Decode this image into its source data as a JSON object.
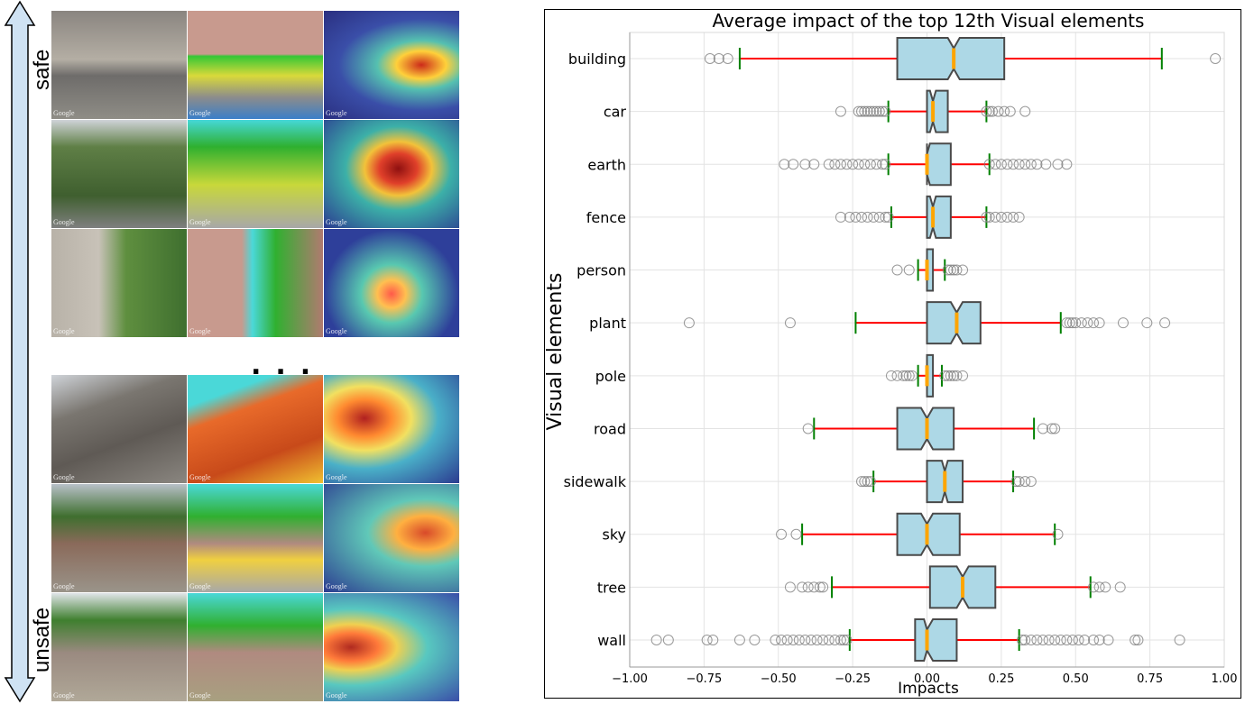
{
  "figure": {
    "left_panel": {
      "top_label": "safe",
      "bottom_label": "unsafe",
      "ellipsis": "...",
      "safe_rows": [
        {
          "name": "row-1",
          "tiles": [
            "street-photo",
            "segmentation-map",
            "attention-heatmap"
          ],
          "watermark": "Google"
        },
        {
          "name": "row-2",
          "tiles": [
            "street-photo",
            "segmentation-map",
            "attention-heatmap"
          ],
          "watermark": "Google"
        },
        {
          "name": "row-3",
          "tiles": [
            "street-photo",
            "segmentation-map",
            "attention-heatmap"
          ],
          "watermark": "Google"
        }
      ],
      "unsafe_rows": [
        {
          "name": "row-1",
          "tiles": [
            "street-photo",
            "segmentation-map",
            "attention-heatmap"
          ],
          "watermark": "Google"
        },
        {
          "name": "row-2",
          "tiles": [
            "street-photo",
            "segmentation-map",
            "attention-heatmap"
          ],
          "watermark": "Google"
        },
        {
          "name": "row-3",
          "tiles": [
            "street-photo",
            "segmentation-map",
            "attention-heatmap"
          ],
          "watermark": "Google"
        }
      ],
      "colors": {
        "arrow_fill": "#cfe2f3",
        "arrow_stroke": "#000000"
      }
    }
  },
  "chart_data": {
    "type": "boxplot",
    "orientation": "horizontal",
    "notched": true,
    "title": "Average impact of the top 12th Visual elements",
    "xlabel": "Impacts",
    "ylabel": "Visual elements",
    "xlim": [
      -1.0,
      1.0
    ],
    "xticks": [
      -1.0,
      -0.75,
      -0.5,
      -0.25,
      0.0,
      0.25,
      0.5,
      0.75,
      1.0
    ],
    "xtick_labels": [
      "−1.00",
      "−0.75",
      "−0.50",
      "−0.25",
      "0.00",
      "0.25",
      "0.50",
      "0.75",
      "1.00"
    ],
    "grid": true,
    "colors": {
      "box_fill": "#add8e6",
      "box_edge": "#4a4a4a",
      "median": "#ffa500",
      "whisker": "#ff0000",
      "cap": "#008000",
      "flier": "#808080"
    },
    "categories": [
      "building",
      "car",
      "earth",
      "fence",
      "person",
      "plant",
      "pole",
      "road",
      "sidewalk",
      "sky",
      "tree",
      "wall"
    ],
    "boxes": [
      {
        "label": "building",
        "whislo": -0.63,
        "q1": -0.1,
        "med": 0.09,
        "q3": 0.26,
        "whishi": 0.79,
        "notch_lo": 0.07,
        "notch_hi": 0.11,
        "fliers": [
          -0.73,
          -0.7,
          -0.67,
          0.97
        ]
      },
      {
        "label": "car",
        "whislo": -0.13,
        "q1": 0.0,
        "med": 0.02,
        "q3": 0.07,
        "whishi": 0.2,
        "notch_lo": 0.01,
        "notch_hi": 0.03,
        "fliers": [
          -0.29,
          -0.23,
          -0.22,
          -0.21,
          -0.2,
          -0.19,
          -0.18,
          -0.17,
          -0.16,
          -0.15,
          -0.14,
          0.2,
          0.21,
          0.22,
          0.24,
          0.26,
          0.28,
          0.33
        ]
      },
      {
        "label": "earth",
        "whislo": -0.13,
        "q1": 0.0,
        "med": 0.0,
        "q3": 0.08,
        "whishi": 0.21,
        "notch_lo": 0.0,
        "notch_hi": 0.01,
        "fliers": [
          -0.48,
          -0.45,
          -0.41,
          -0.38,
          -0.33,
          -0.31,
          -0.29,
          -0.27,
          -0.25,
          -0.23,
          -0.21,
          -0.19,
          -0.17,
          -0.15,
          -0.14,
          0.21,
          0.23,
          0.25,
          0.27,
          0.29,
          0.31,
          0.33,
          0.35,
          0.37,
          0.4,
          0.44,
          0.47
        ]
      },
      {
        "label": "fence",
        "whislo": -0.12,
        "q1": 0.0,
        "med": 0.02,
        "q3": 0.08,
        "whishi": 0.2,
        "notch_lo": 0.01,
        "notch_hi": 0.03,
        "fliers": [
          -0.29,
          -0.26,
          -0.24,
          -0.22,
          -0.2,
          -0.18,
          -0.16,
          -0.14,
          -0.13,
          0.2,
          0.21,
          0.23,
          0.25,
          0.27,
          0.29,
          0.31
        ]
      },
      {
        "label": "person",
        "whislo": -0.03,
        "q1": 0.0,
        "med": 0.0,
        "q3": 0.02,
        "whishi": 0.06,
        "notch_lo": 0.0,
        "notch_hi": 0.0,
        "fliers": [
          -0.1,
          -0.06,
          0.07,
          0.08,
          0.09,
          0.1,
          0.12
        ]
      },
      {
        "label": "plant",
        "whislo": -0.24,
        "q1": 0.0,
        "med": 0.1,
        "q3": 0.18,
        "whishi": 0.45,
        "notch_lo": 0.08,
        "notch_hi": 0.12,
        "fliers": [
          -0.8,
          -0.46,
          0.47,
          0.48,
          0.49,
          0.5,
          0.52,
          0.54,
          0.56,
          0.58,
          0.66,
          0.74,
          0.8
        ]
      },
      {
        "label": "pole",
        "whislo": -0.03,
        "q1": 0.0,
        "med": 0.0,
        "q3": 0.02,
        "whishi": 0.05,
        "notch_lo": 0.0,
        "notch_hi": 0.0,
        "fliers": [
          -0.12,
          -0.1,
          -0.08,
          -0.07,
          -0.06,
          -0.05,
          0.06,
          0.07,
          0.08,
          0.09,
          0.1,
          0.12
        ]
      },
      {
        "label": "road",
        "whislo": -0.38,
        "q1": -0.1,
        "med": 0.0,
        "q3": 0.09,
        "whishi": 0.36,
        "notch_lo": -0.02,
        "notch_hi": 0.02,
        "fliers": [
          -0.4,
          0.39,
          0.42,
          0.43
        ]
      },
      {
        "label": "sidewalk",
        "whislo": -0.18,
        "q1": 0.0,
        "med": 0.06,
        "q3": 0.12,
        "whishi": 0.29,
        "notch_lo": 0.05,
        "notch_hi": 0.07,
        "fliers": [
          -0.22,
          -0.21,
          -0.2,
          -0.19,
          0.3,
          0.31,
          0.33,
          0.35
        ]
      },
      {
        "label": "sky",
        "whislo": -0.42,
        "q1": -0.1,
        "med": 0.0,
        "q3": 0.11,
        "whishi": 0.43,
        "notch_lo": -0.02,
        "notch_hi": 0.02,
        "fliers": [
          -0.49,
          -0.44,
          0.44
        ]
      },
      {
        "label": "tree",
        "whislo": -0.32,
        "q1": 0.01,
        "med": 0.12,
        "q3": 0.23,
        "whishi": 0.55,
        "notch_lo": 0.1,
        "notch_hi": 0.14,
        "fliers": [
          -0.46,
          -0.42,
          -0.4,
          -0.38,
          -0.36,
          -0.35,
          0.56,
          0.58,
          0.6,
          0.65
        ]
      },
      {
        "label": "wall",
        "whislo": -0.26,
        "q1": -0.04,
        "med": 0.0,
        "q3": 0.1,
        "whishi": 0.31,
        "notch_lo": -0.01,
        "notch_hi": 0.02,
        "fliers": [
          -0.91,
          -0.87,
          -0.74,
          -0.72,
          -0.63,
          -0.58,
          -0.51,
          -0.49,
          -0.47,
          -0.45,
          -0.43,
          -0.41,
          -0.39,
          -0.37,
          -0.35,
          -0.33,
          -0.31,
          -0.29,
          -0.28,
          -0.27,
          0.32,
          0.33,
          0.35,
          0.37,
          0.39,
          0.41,
          0.43,
          0.45,
          0.47,
          0.49,
          0.51,
          0.53,
          0.56,
          0.58,
          0.61,
          0.7,
          0.71,
          0.85
        ]
      }
    ]
  }
}
